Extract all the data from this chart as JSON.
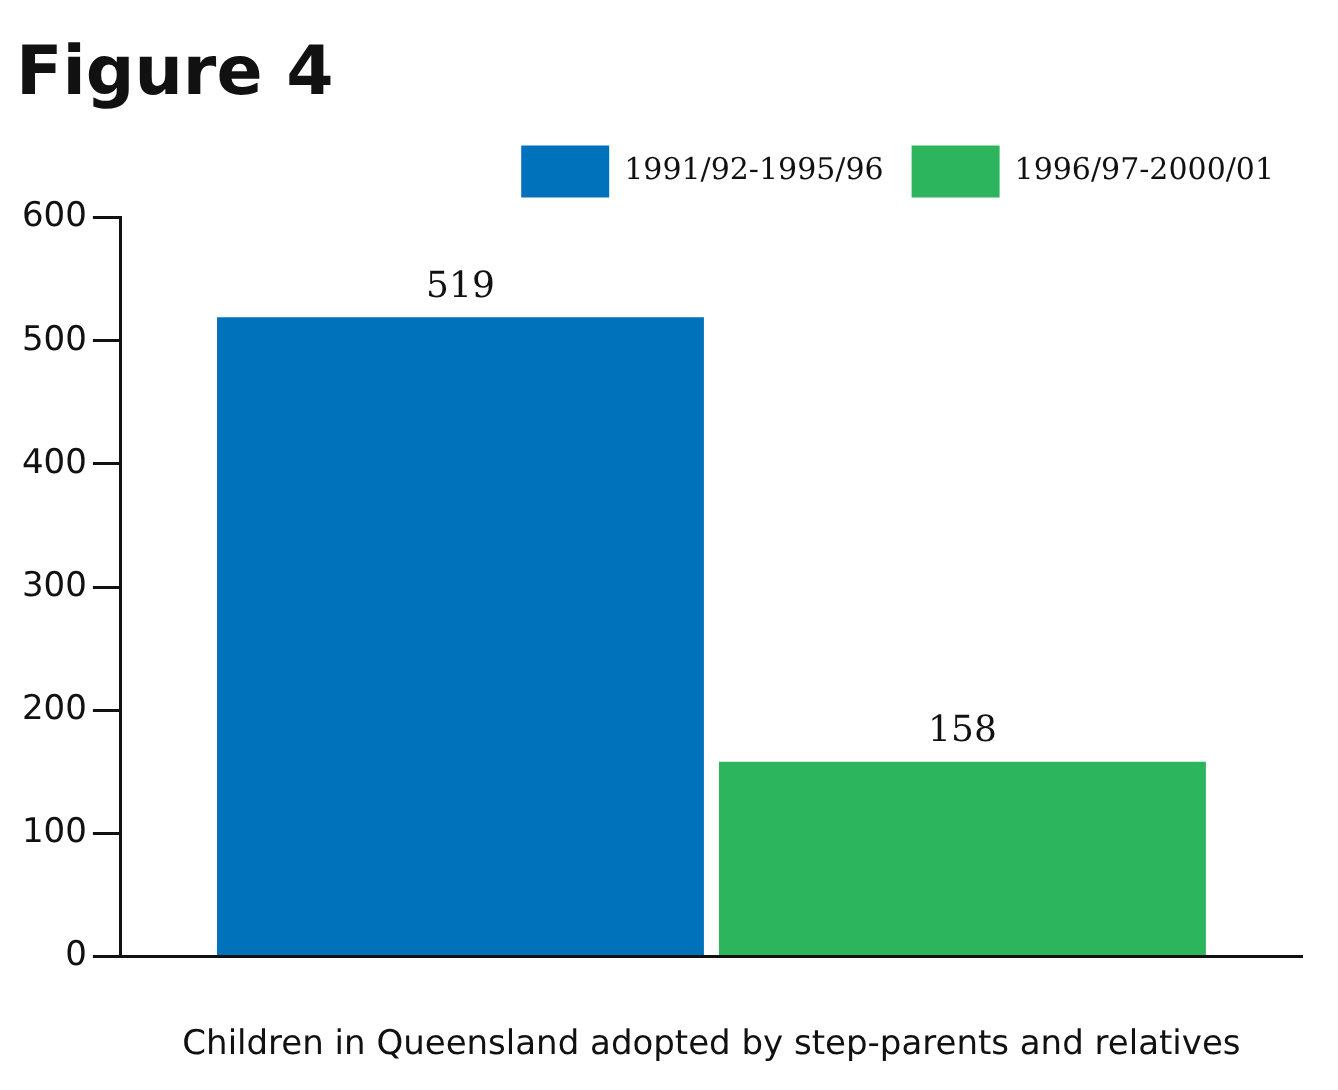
{
  "chart_data": {
    "type": "bar",
    "title": "Figure 4",
    "xlabel": "Children in Queensland adopted by step-parents and relatives",
    "categories": [
      null
    ],
    "series": [
      {
        "name": "1991/92-1995/96",
        "color": "#0072bc",
        "values": [
          519
        ]
      },
      {
        "name": "1996/97-2000/01",
        "color": "#2db55d",
        "values": [
          158
        ]
      }
    ],
    "ylim": [
      0,
      600
    ],
    "yticks": [
      0,
      100,
      200,
      300,
      400,
      500,
      600
    ],
    "grid": false,
    "legend": "top right",
    "data_labels": true
  }
}
